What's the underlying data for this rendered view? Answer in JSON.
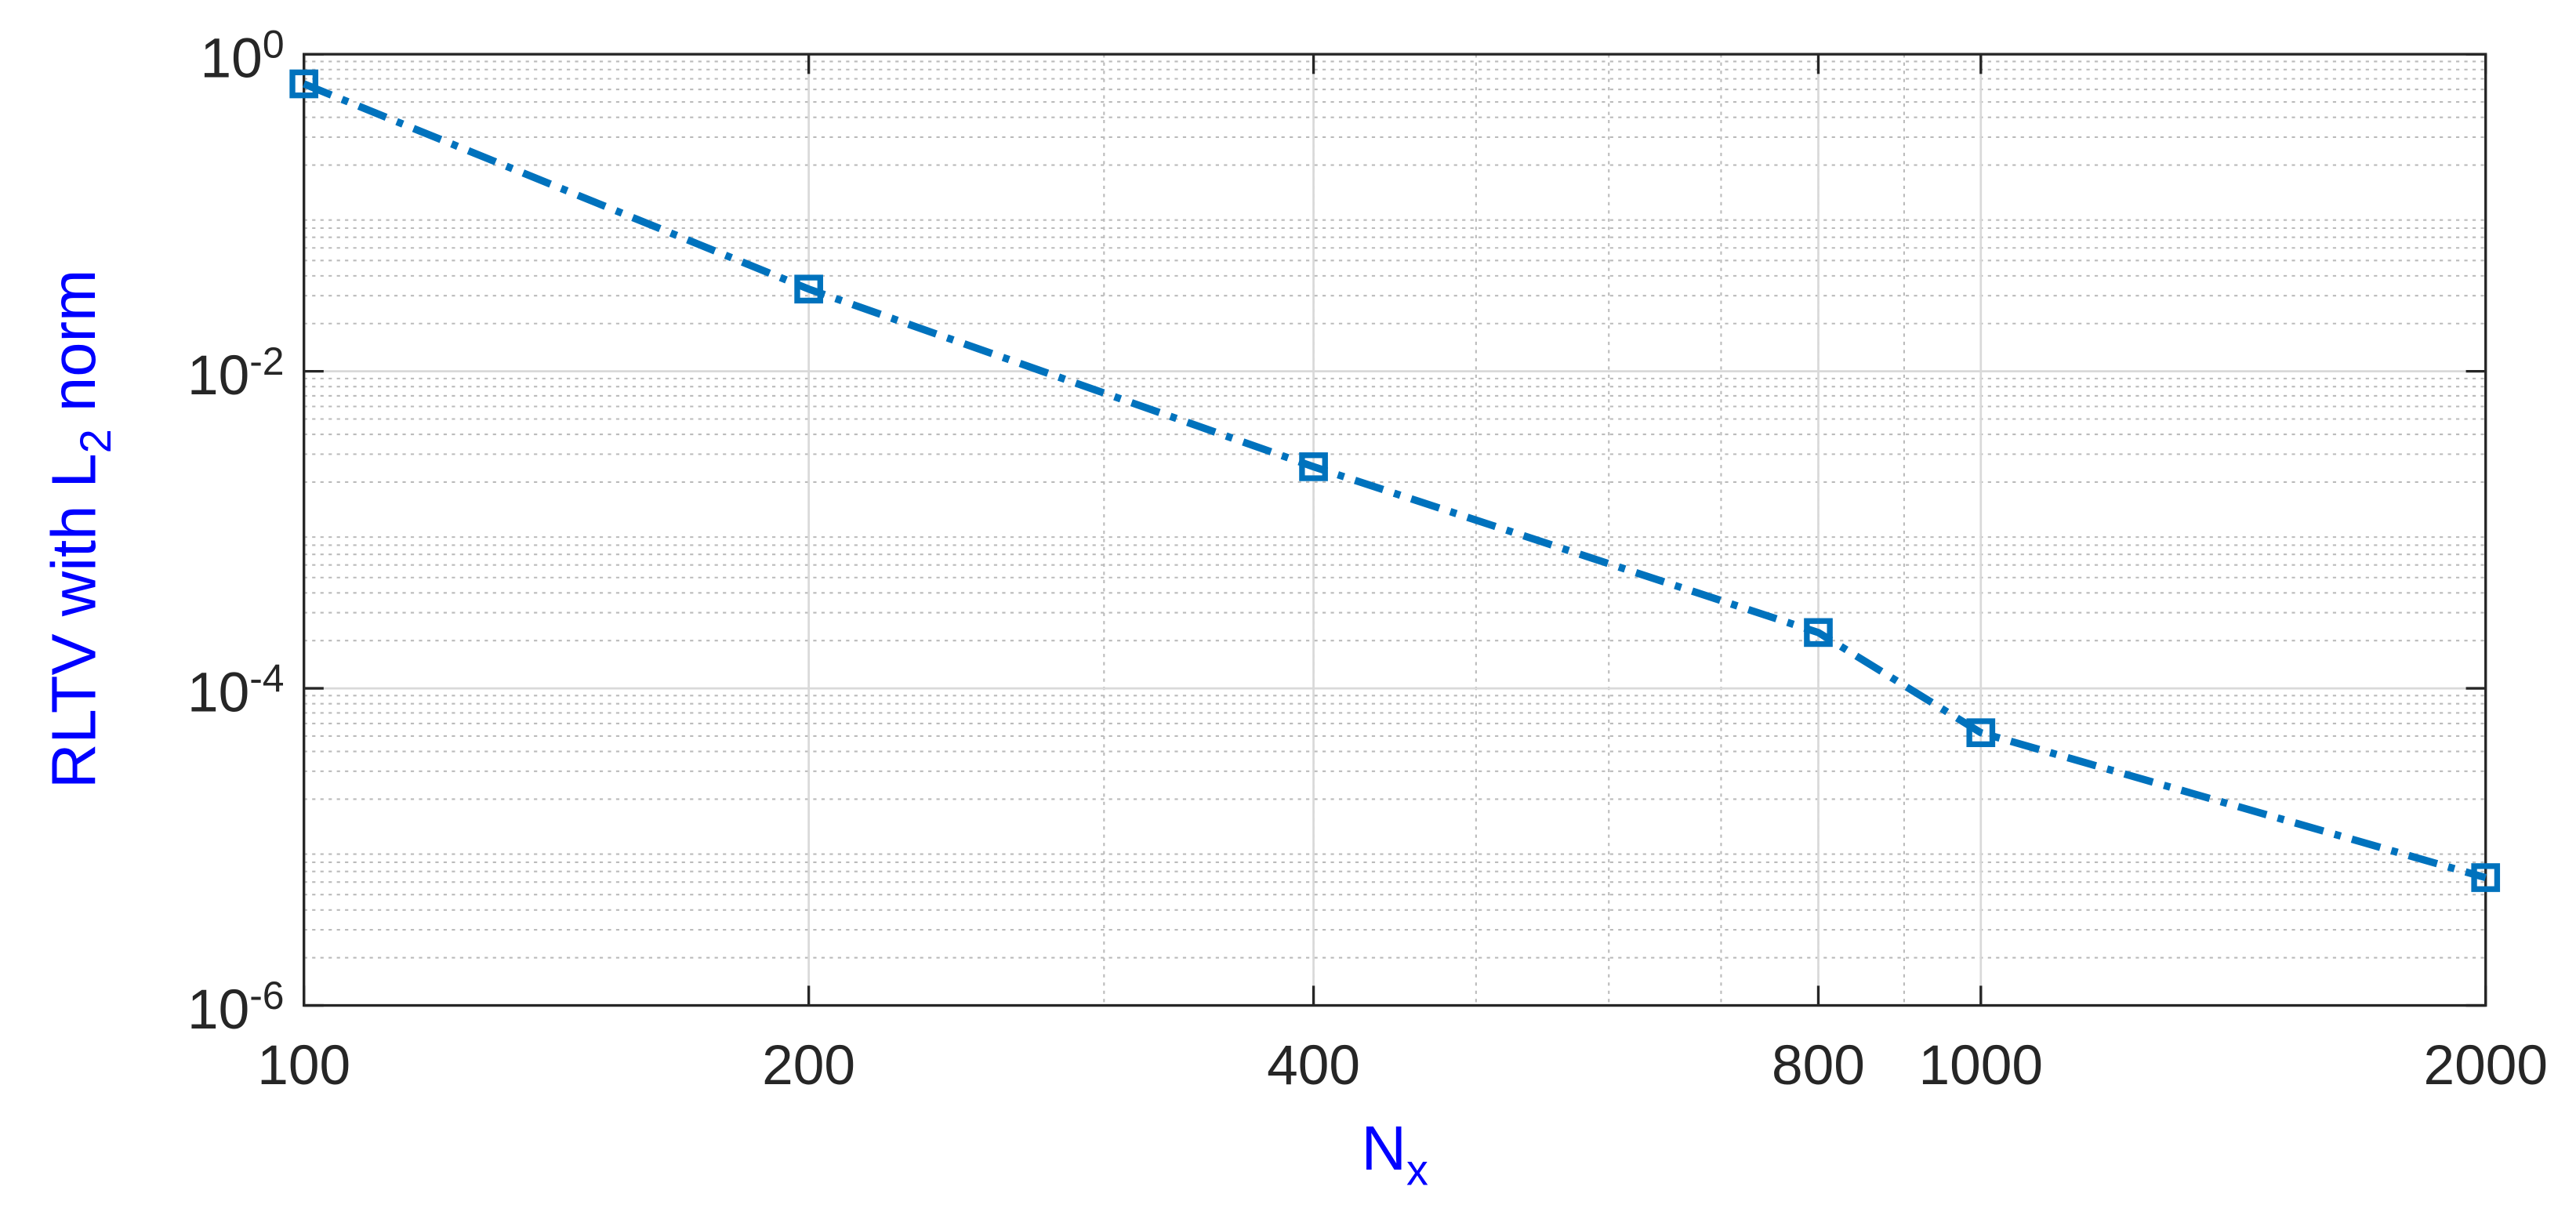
{
  "chart_data": {
    "type": "line",
    "xlabel": "N_x",
    "ylabel": "RLTV with L_2 norm",
    "x": [
      100,
      200,
      400,
      800,
      1000,
      2000
    ],
    "series": [
      {
        "color": "#0072bd",
        "values": [
          0.65,
          0.033,
          0.0025,
          0.000225,
          5.25e-05,
          6.4e-06
        ]
      }
    ],
    "xlim": [
      100,
      2000
    ],
    "xticks": [
      100,
      200,
      400,
      800,
      1000,
      2000
    ],
    "ylim": [
      1e-06,
      1
    ],
    "yticks": [
      {
        "value": 1e-06,
        "label": "10^-6"
      },
      {
        "value": 0.0001,
        "label": "10^-4"
      },
      {
        "value": 0.01,
        "label": "10^-2"
      },
      {
        "value": 1,
        "label": "10^0"
      }
    ],
    "xscale": "log",
    "yscale": "log",
    "grid": true,
    "minor_grid": true,
    "label_color": "#0000ff"
  }
}
